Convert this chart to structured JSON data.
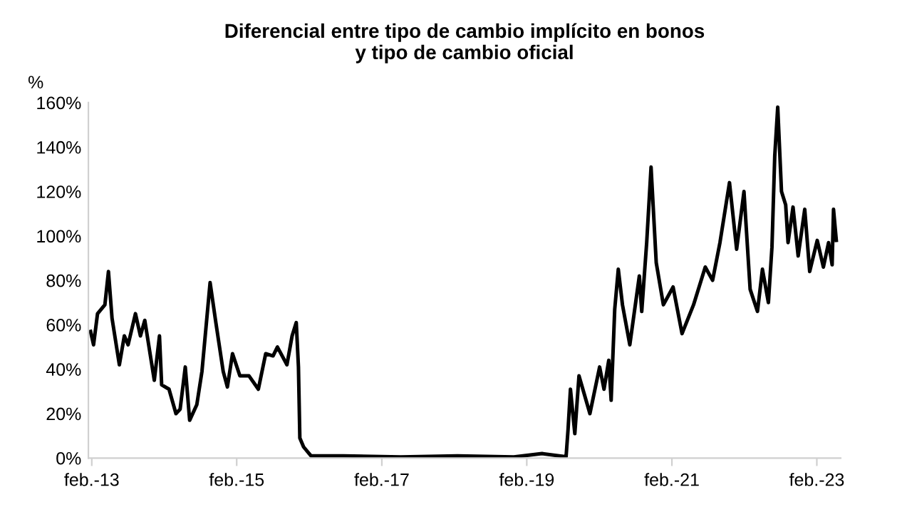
{
  "chart_data": {
    "type": "line",
    "title": "Diferencial entre tipo de cambio implícito en bonos\ny tipo de cambio oficial",
    "ylabel": "%",
    "x": [
      "2013-01-26",
      "2013-02-10",
      "2013-03-02",
      "2013-04-08",
      "2013-04-26",
      "2013-05-14",
      "2013-06-20",
      "2013-07-15",
      "2013-08-03",
      "2013-09-09",
      "2013-10-04",
      "2013-10-26",
      "2013-12-13",
      "2014-01-08",
      "2014-01-19",
      "2014-02-25",
      "2014-04-01",
      "2014-04-22",
      "2014-05-18",
      "2014-06-09",
      "2014-07-15",
      "2014-08-10",
      "2014-09-20",
      "2014-10-19",
      "2014-11-25",
      "2014-12-16",
      "2015-01-11",
      "2015-02-17",
      "2015-04-04",
      "2015-05-21",
      "2015-06-27",
      "2015-08-03",
      "2015-08-25",
      "2015-10-12",
      "2015-11-07",
      "2015-11-28",
      "2015-12-09",
      "2015-12-16",
      "2016-01-04",
      "2016-02-10",
      "2016-07-22",
      "2017-05-07",
      "2018-02-17",
      "2018-11-28",
      "2019-04-19",
      "2019-08-18",
      "2019-08-28",
      "2019-09-09",
      "2019-10-01",
      "2019-10-22",
      "2019-12-16",
      "2020-02-03",
      "2020-02-25",
      "2020-03-20",
      "2020-04-01",
      "2020-04-19",
      "2020-05-07",
      "2020-05-28",
      "2020-07-04",
      "2020-08-21",
      "2020-09-02",
      "2020-09-27",
      "2020-10-19",
      "2020-11-14",
      "2020-12-20",
      "2021-02-07",
      "2021-03-24",
      "2021-05-21",
      "2021-07-19",
      "2021-08-25",
      "2021-10-01",
      "2021-11-18",
      "2021-12-24",
      "2022-01-30",
      "2022-03-02",
      "2022-04-08",
      "2022-05-03",
      "2022-06-02",
      "2022-06-20",
      "2022-07-04",
      "2022-07-19",
      "2022-08-07",
      "2022-08-28",
      "2022-09-09",
      "2022-10-04",
      "2022-10-30",
      "2022-12-02",
      "2022-12-27",
      "2023-02-03",
      "2023-03-06",
      "2023-04-01",
      "2023-04-19",
      "2023-04-26",
      "2023-05-10"
    ],
    "series": [
      {
        "color": "#000000",
        "values": [
          57,
          51,
          65,
          69,
          84,
          63,
          42,
          55,
          51,
          65,
          55,
          62,
          35,
          55,
          33,
          31,
          20,
          22,
          41,
          17,
          24,
          39,
          79,
          61,
          39,
          32,
          47,
          37,
          37,
          31,
          47,
          46,
          50,
          42,
          55,
          61,
          41,
          9,
          5,
          1,
          1,
          0.5,
          1,
          0.5,
          2,
          0.6,
          13,
          31,
          11,
          37,
          20,
          41,
          31,
          44,
          26,
          67,
          85,
          69,
          51,
          82,
          66,
          97,
          131,
          88,
          69,
          77,
          56,
          69,
          86,
          80,
          97,
          124,
          94,
          120,
          76,
          66,
          85,
          70,
          95,
          136,
          158,
          120,
          114,
          97,
          113,
          91,
          112,
          84,
          98,
          86,
          97,
          87,
          112,
          98
        ]
      }
    ],
    "xlim": [
      "2013-01-15",
      "2023-06-01"
    ],
    "xticks": [
      {
        "value": "2013-02-01",
        "label": "feb.-13"
      },
      {
        "value": "2015-02-01",
        "label": "feb.-15"
      },
      {
        "value": "2017-02-01",
        "label": "feb.-17"
      },
      {
        "value": "2019-02-01",
        "label": "feb.-19"
      },
      {
        "value": "2021-02-01",
        "label": "feb.-21"
      },
      {
        "value": "2023-02-01",
        "label": "feb.-23"
      }
    ],
    "ylim": [
      0,
      160
    ],
    "yticks": [
      {
        "value": 0,
        "label": "0%"
      },
      {
        "value": 20,
        "label": "20%"
      },
      {
        "value": 40,
        "label": "40%"
      },
      {
        "value": 60,
        "label": "60%"
      },
      {
        "value": 80,
        "label": "80%"
      },
      {
        "value": 100,
        "label": "100%"
      },
      {
        "value": 120,
        "label": "120%"
      },
      {
        "value": 140,
        "label": "140%"
      },
      {
        "value": 160,
        "label": "160%"
      }
    ],
    "grid": false,
    "line_style": "solid",
    "marker": "none"
  }
}
